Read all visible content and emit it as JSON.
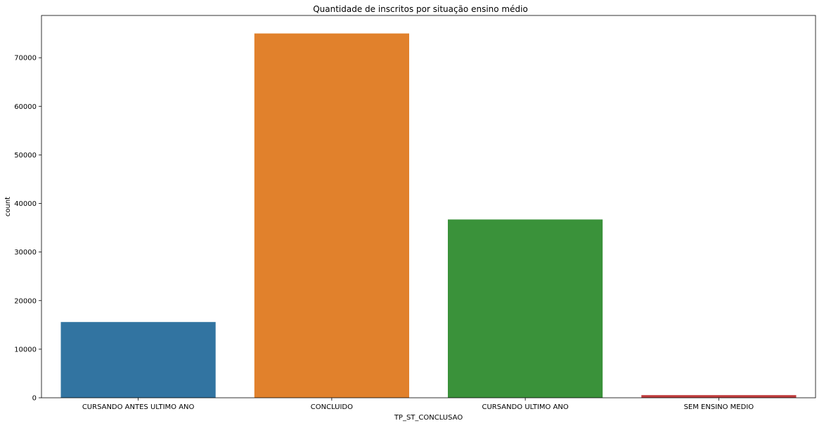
{
  "chart_data": {
    "type": "bar",
    "title": "Quantidade de inscritos por situação ensino médio",
    "xlabel": "TP_ST_CONCLUSAO",
    "ylabel": "count",
    "categories": [
      "CURSANDO ANTES ULTIMO ANO",
      "CONCLUIDO",
      "CURSANDO ULTIMO ANO",
      "SEM ENSINO MEDIO"
    ],
    "values": [
      15600,
      75000,
      36700,
      550
    ],
    "colors": [
      "#3274a1",
      "#e1812c",
      "#3a923a",
      "#c03d3e"
    ],
    "yticks": [
      0,
      10000,
      20000,
      30000,
      40000,
      50000,
      60000,
      70000
    ],
    "ylim": [
      0,
      78700
    ],
    "grid": false,
    "legend": "none"
  }
}
